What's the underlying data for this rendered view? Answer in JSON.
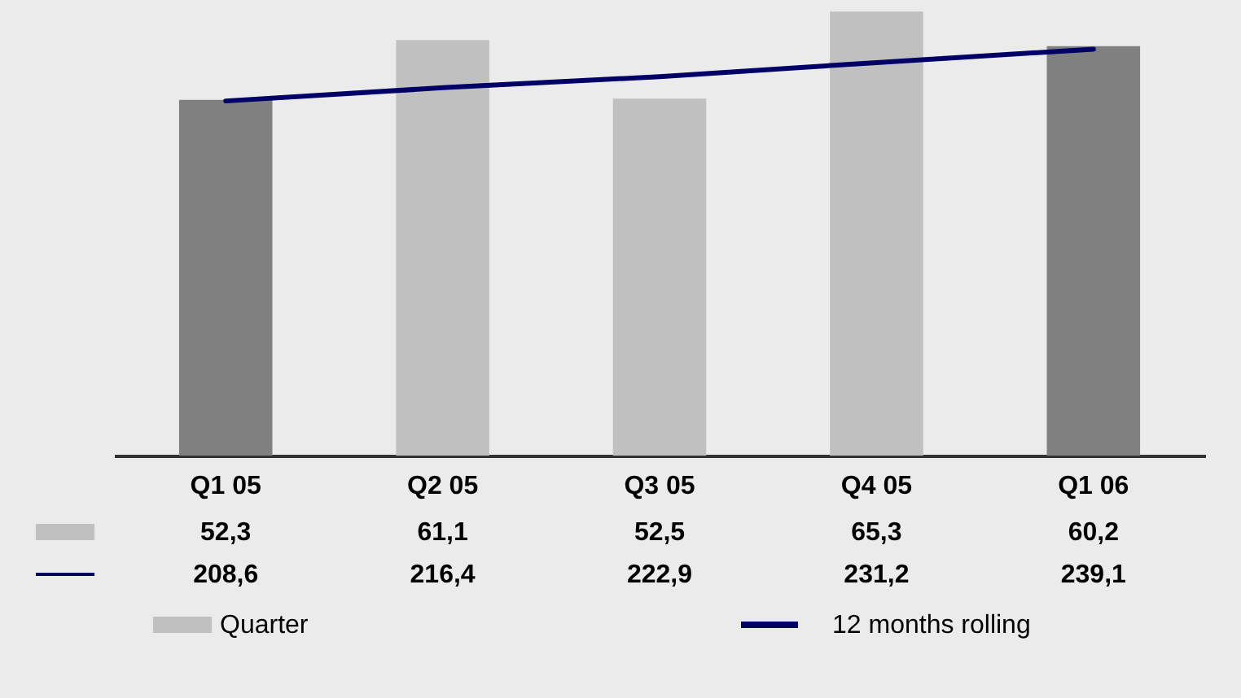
{
  "chart_data": {
    "type": "bar",
    "categories": [
      "Q1 05",
      "Q2 05",
      "Q3 05",
      "Q4 05",
      "Q1 06"
    ],
    "series": [
      {
        "name": "Quarter",
        "color": "#c0c0c0",
        "colors": [
          "#808080",
          "#c0c0c0",
          "#c0c0c0",
          "#c0c0c0",
          "#808080"
        ],
        "values": [
          52.3,
          61.1,
          52.5,
          65.3,
          60.2
        ],
        "value_labels": [
          "52,3",
          "61,1",
          "52,5",
          "65,3",
          "60,2"
        ]
      },
      {
        "name": "12 months rolling",
        "type": "line",
        "axis": "y2",
        "color": "#000066",
        "values": [
          208.6,
          216.4,
          222.9,
          231.2,
          239.1
        ],
        "value_labels": [
          "208,6",
          "216,4",
          "222,9",
          "231,2",
          "239,1"
        ]
      }
    ],
    "ylim": [
      0,
      67
    ],
    "y2lim": [
      0,
      268
    ],
    "tick_labels": "x",
    "legend": "bottom"
  }
}
